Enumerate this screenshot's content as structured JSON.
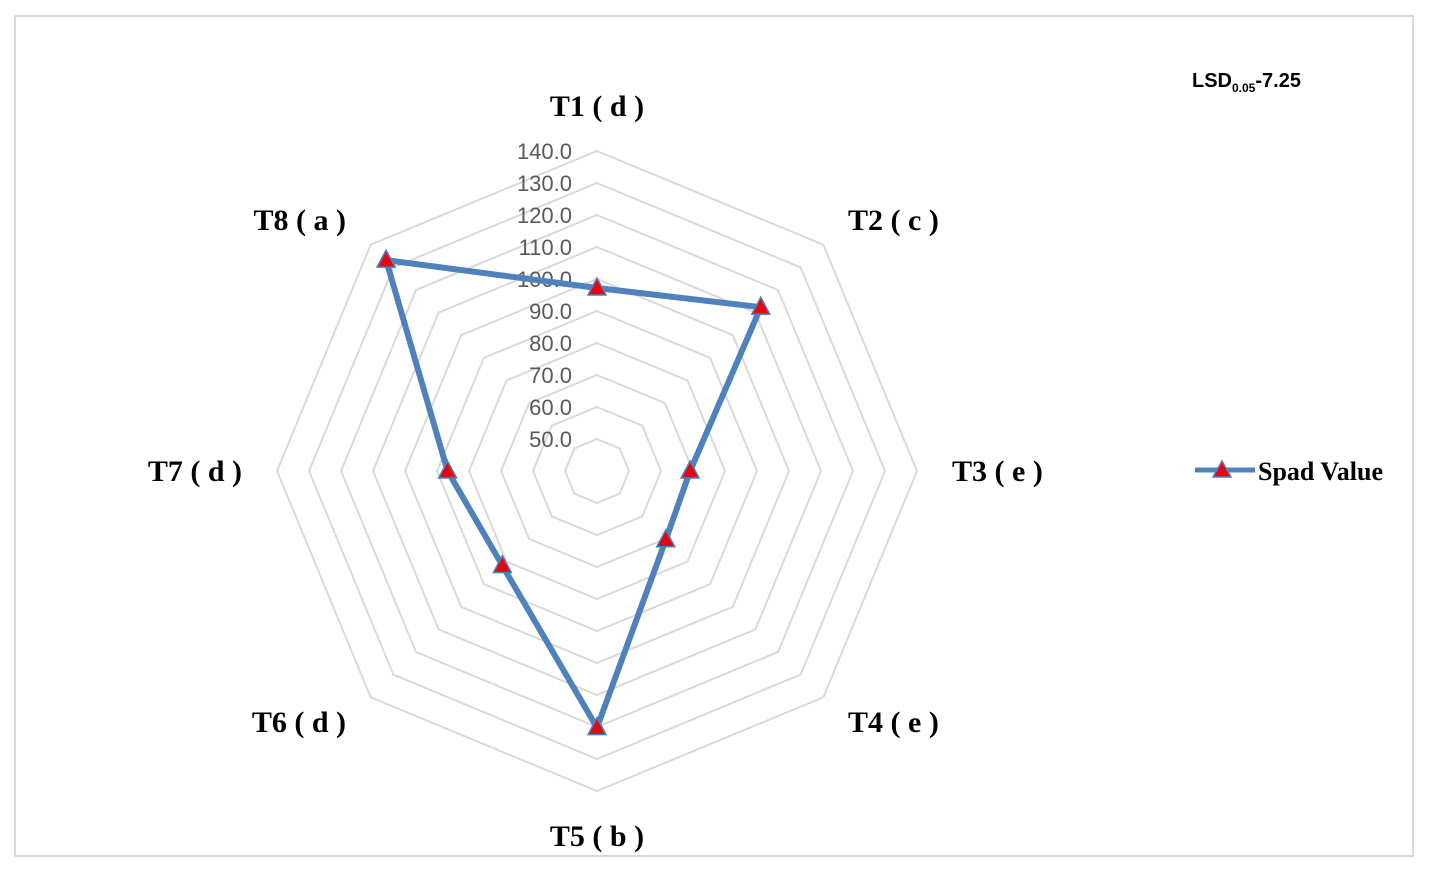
{
  "chart_data": {
    "type": "radar",
    "categories": [
      "T1 ( d )",
      "T2 ( c )",
      "T3 ( e )",
      "T4 ( e )",
      "T5 ( b )",
      "T6 ( d )",
      "T7 ( d )",
      "T8 ( a )"
    ],
    "series": [
      {
        "name": "Spad Value",
        "values": [
          97.2,
          112.4,
          69.1,
          70.4,
          120.2,
          81.8,
          86.7,
          133.2
        ],
        "color": "#4f81bd",
        "marker_color": "#e30613"
      }
    ],
    "rlim": [
      40,
      140
    ],
    "ticks": [
      "50.0",
      "60.0",
      "70.0",
      "80.0",
      "90.0",
      "100.0",
      "110.0",
      "120.0",
      "130.0",
      "140.0"
    ],
    "grid": true,
    "legend": "right",
    "annotation": {
      "main": "LSD",
      "sub": "0.05",
      "tail": "-7.25"
    }
  }
}
